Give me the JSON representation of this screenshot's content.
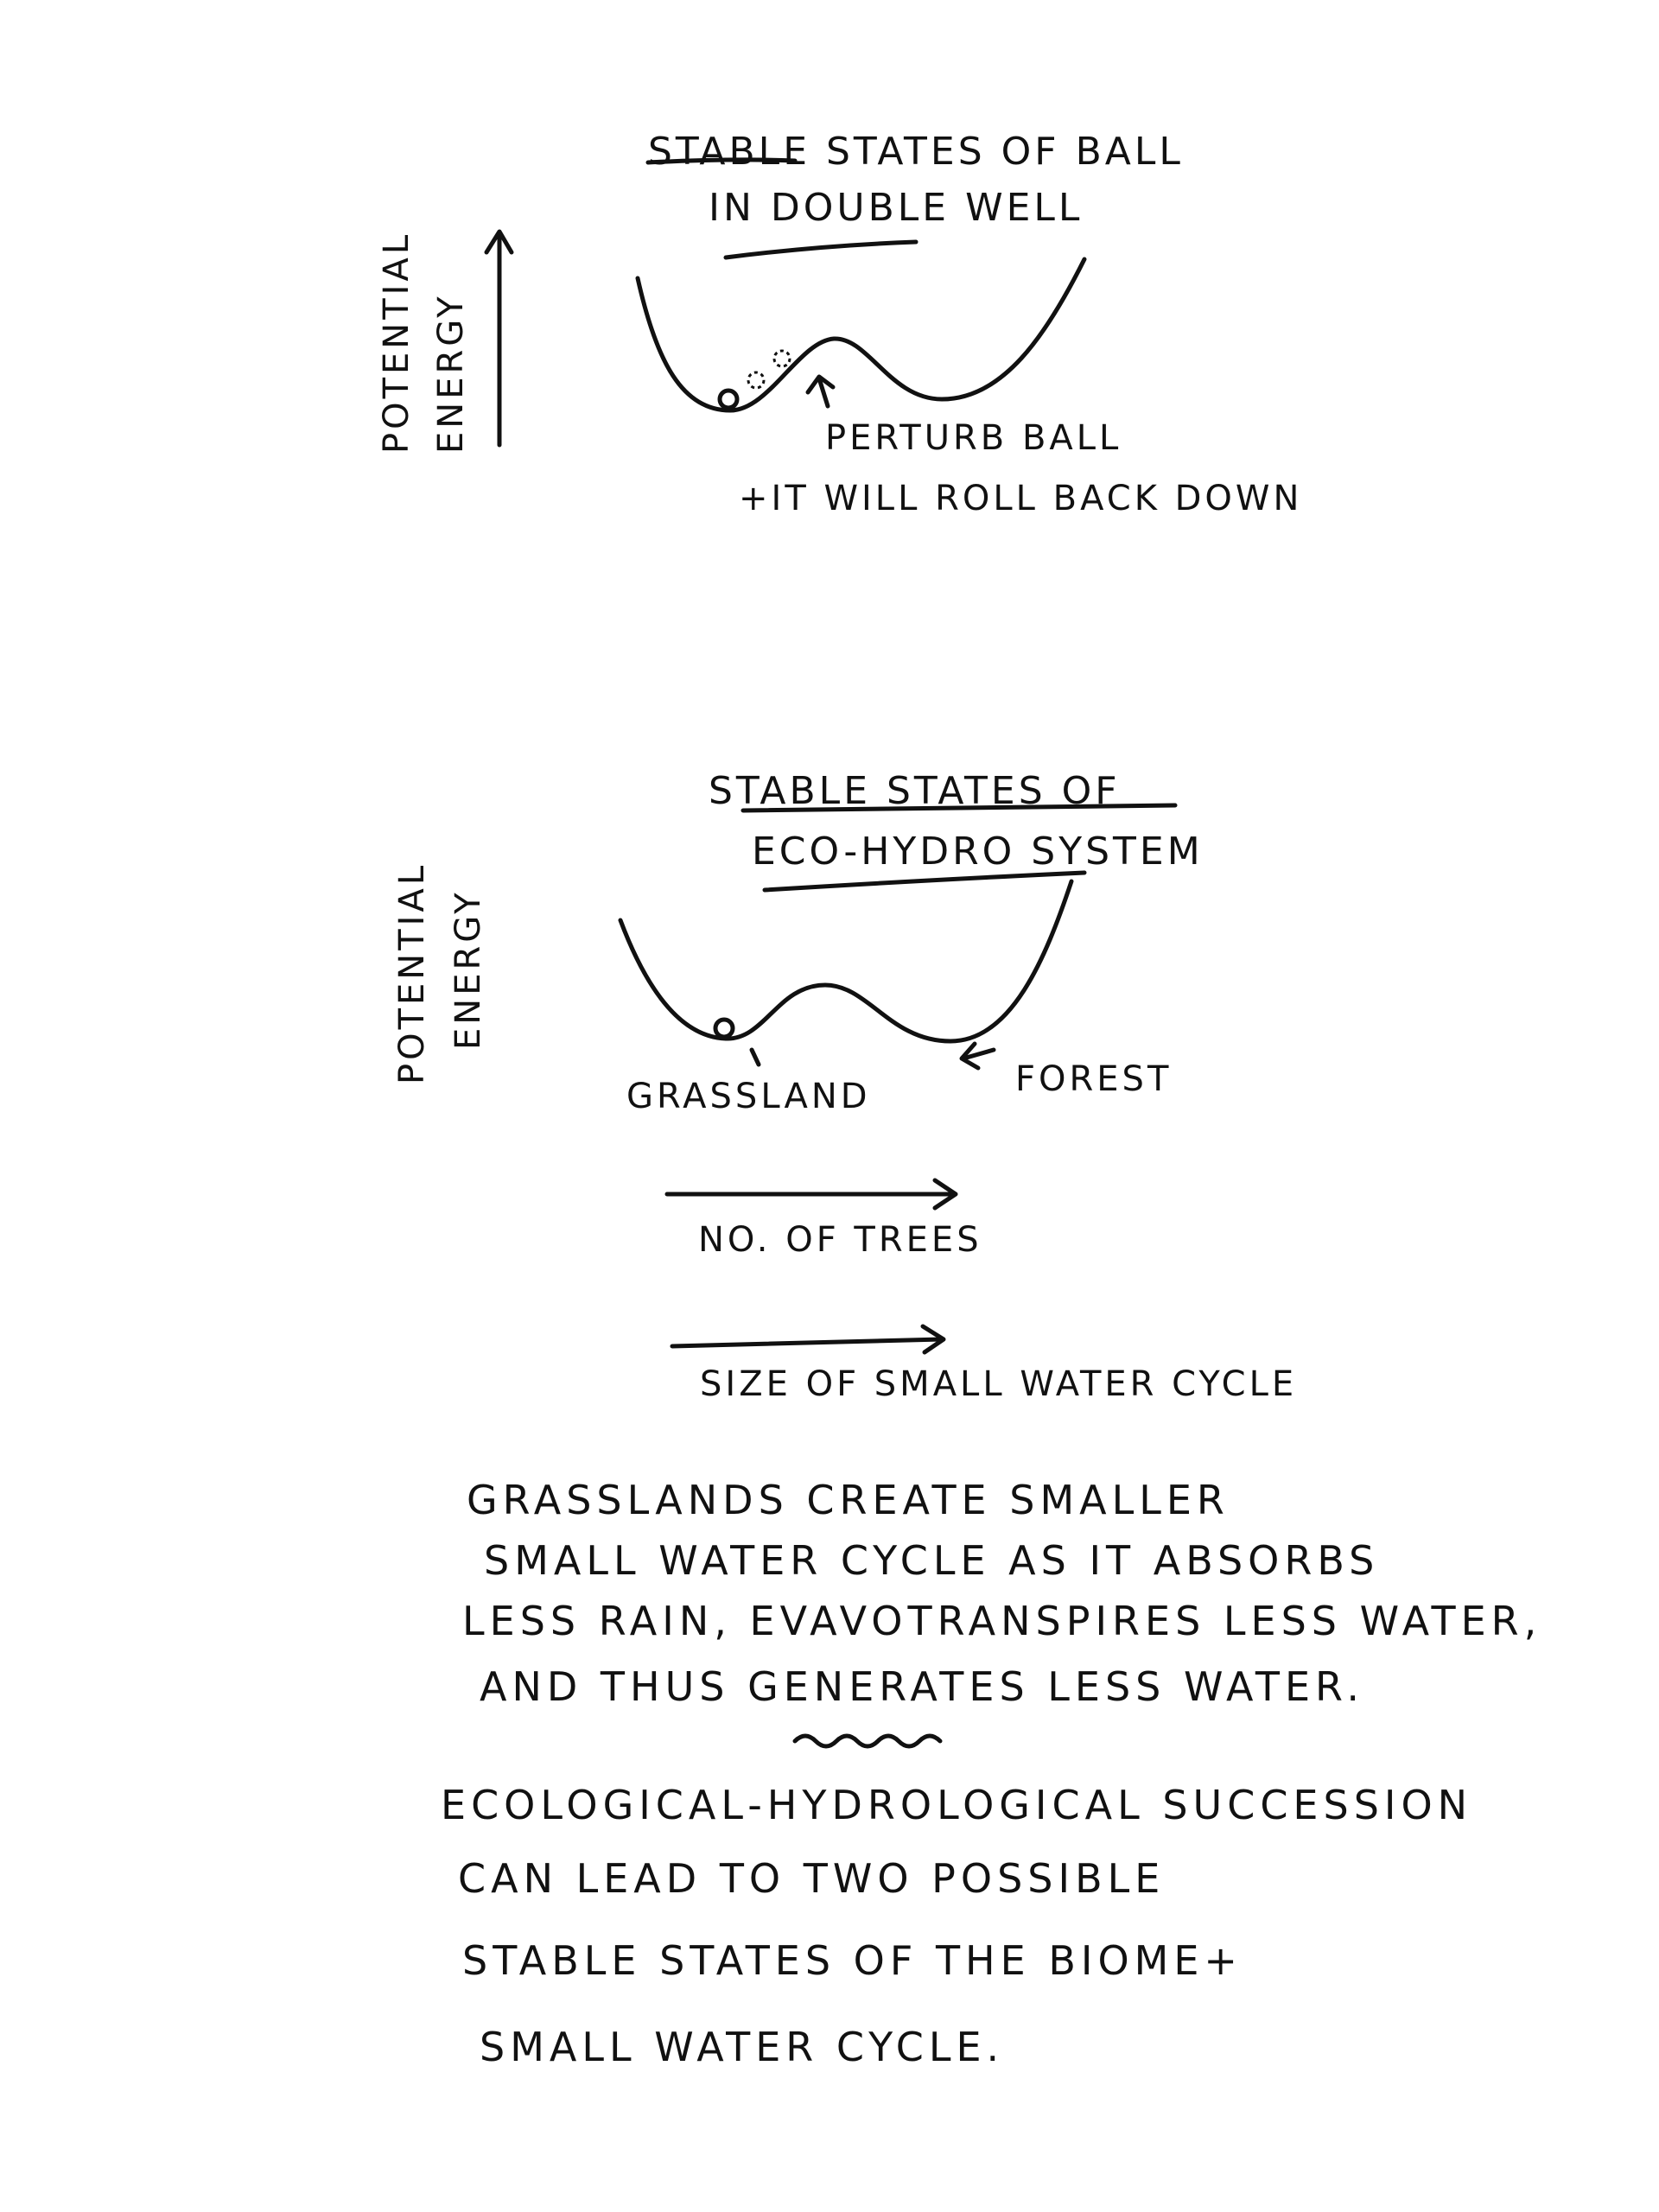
{
  "diagram1": {
    "title_line1": "STABLE STATES OF BALL",
    "title_line2": "IN DOUBLE WELL",
    "axis_label_line1": "POTENTIAL",
    "axis_label_line2": "ENERGY",
    "annotation_line1": "PERTURB BALL",
    "annotation_line2": "+IT WILL ROLL BACK DOWN"
  },
  "diagram2": {
    "title_line1": "STABLE STATES OF",
    "title_line2": "ECO-HYDRO SYSTEM",
    "axis_label_line1": "POTENTIAL",
    "axis_label_line2": "ENERGY",
    "left_well_label": "GRASSLAND",
    "right_well_label": "FOREST",
    "arrow1_label": "NO. OF TREES",
    "arrow2_label": "SIZE OF SMALL WATER CYCLE"
  },
  "paragraph1": {
    "line1": "GRASSLANDS CREATE SMALLER",
    "line2": "SMALL WATER CYCLE AS IT ABSORBS",
    "line3": "LESS RAIN, EVAVOTRANSPIRES LESS WATER,",
    "line4": "AND THUS GENERATES LESS WATER."
  },
  "paragraph2": {
    "line1": "ECOLOGICAL-HYDROLOGICAL SUCCESSION",
    "line2": "CAN LEAD TO TWO POSSIBLE",
    "line3": "STABLE STATES OF THE BIOME+",
    "line4": "SMALL WATER CYCLE."
  }
}
